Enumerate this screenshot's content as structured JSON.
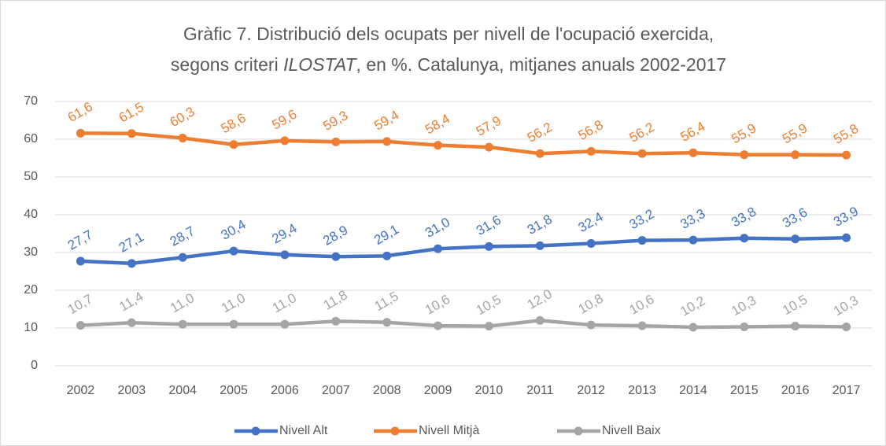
{
  "chart_data": {
    "type": "line",
    "title": [
      "Gràfic 7. Distribució dels ocupats per nivell de l'ocupació exercida,",
      "segons criteri ",
      "ILOSTAT",
      ", en %. Catalunya, mitjanes anuals 2002-2017"
    ],
    "categories": [
      "2002",
      "2003",
      "2004",
      "2005",
      "2006",
      "2007",
      "2008",
      "2009",
      "2010",
      "2011",
      "2012",
      "2013",
      "2014",
      "2015",
      "2016",
      "2017"
    ],
    "series": [
      {
        "name": "Nivell Alt",
        "color": "#4472c4",
        "values": [
          27.7,
          27.1,
          28.7,
          30.4,
          29.4,
          28.9,
          29.1,
          31.0,
          31.6,
          31.8,
          32.4,
          33.2,
          33.3,
          33.8,
          33.6,
          33.9
        ],
        "value_labels": [
          "27,7",
          "27,1",
          "28,7",
          "30,4",
          "29,4",
          "28,9",
          "29,1",
          "31,0",
          "31,6",
          "31,8",
          "32,4",
          "33,2",
          "33,3",
          "33,8",
          "33,6",
          "33,9"
        ]
      },
      {
        "name": "Nivell Mitjà",
        "color": "#ed7d31",
        "values": [
          61.6,
          61.5,
          60.3,
          58.6,
          59.6,
          59.3,
          59.4,
          58.4,
          57.9,
          56.2,
          56.8,
          56.2,
          56.4,
          55.9,
          55.9,
          55.8
        ],
        "value_labels": [
          "61,6",
          "61,5",
          "60,3",
          "58,6",
          "59,6",
          "59,3",
          "59,4",
          "58,4",
          "57,9",
          "56,2",
          "56,8",
          "56,2",
          "56,4",
          "55,9",
          "55,9",
          "55,8"
        ]
      },
      {
        "name": "Nivell Baix",
        "color": "#a5a5a5",
        "values": [
          10.7,
          11.4,
          11.0,
          11.0,
          11.0,
          11.8,
          11.5,
          10.6,
          10.5,
          12.0,
          10.8,
          10.6,
          10.2,
          10.3,
          10.5,
          10.3
        ],
        "value_labels": [
          "10,7",
          "11,4",
          "11,0",
          "11,0",
          "11,0",
          "11,8",
          "11,5",
          "10,6",
          "10,5",
          "12,0",
          "10,8",
          "10,6",
          "10,2",
          "10,3",
          "10,5",
          "10,3"
        ]
      }
    ],
    "ylim": [
      0,
      70
    ],
    "yticks": [
      0,
      10,
      20,
      30,
      40,
      50,
      60,
      70
    ],
    "grid": true,
    "legend": "bottom"
  }
}
